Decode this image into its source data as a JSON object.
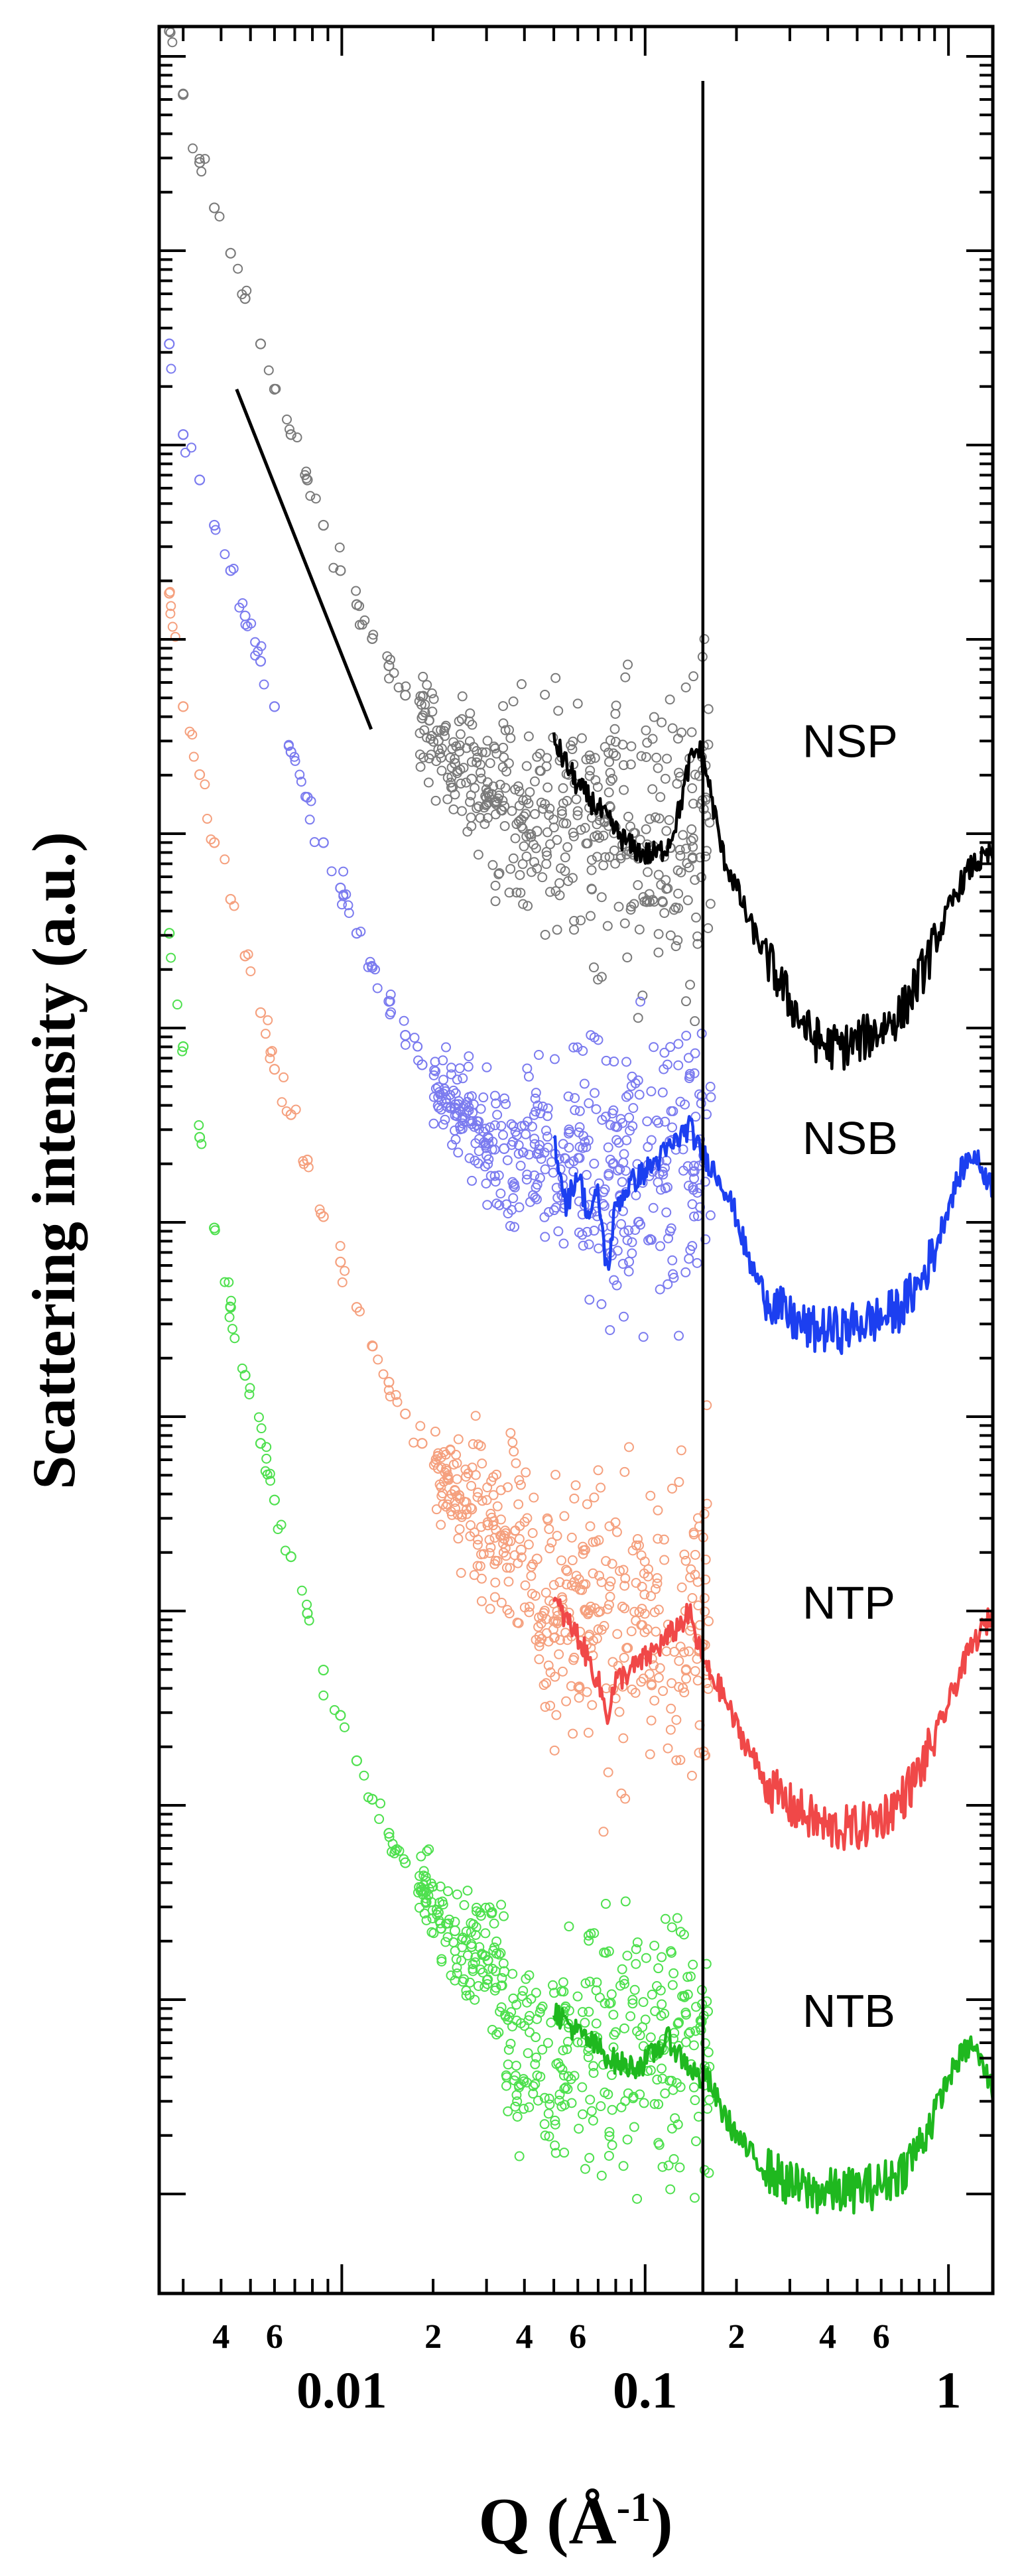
{
  "chart_data": {
    "type": "scatter",
    "title": "",
    "xlabel": "Q (Å",
    "xlabel_sup": "-1",
    "xlabel_end": ")",
    "ylabel": "Scattering intensity (a.u.)",
    "xscale": "log",
    "xlim": [
      0.0025,
      1.4
    ],
    "ylim": [
      0,
      100
    ],
    "y_ticks": "unlabeled",
    "x_tick_labels": [
      {
        "value": 0.004,
        "label": "4"
      },
      {
        "value": 0.006,
        "label": "6"
      },
      {
        "value": 0.01,
        "label": "0.01"
      },
      {
        "value": 0.02,
        "label": "2"
      },
      {
        "value": 0.04,
        "label": "4"
      },
      {
        "value": 0.06,
        "label": "6"
      },
      {
        "value": 0.1,
        "label": "0.1"
      },
      {
        "value": 0.2,
        "label": "2"
      },
      {
        "value": 0.4,
        "label": "4"
      },
      {
        "value": 0.6,
        "label": "6"
      },
      {
        "value": 1,
        "label": "1"
      }
    ],
    "reference_line": {
      "type": "vertical",
      "x": 0.155
    },
    "guide_line": {
      "x": [
        0.0045,
        0.0125
      ],
      "y": [
        84,
        69
      ]
    },
    "series": [
      {
        "name": "NSP",
        "marker_color": "#7a7a7a",
        "line_color": "#000000",
        "saxs_points": {
          "x": [
            0.0027,
            0.003,
            0.0034,
            0.0038,
            0.0043,
            0.0048,
            0.0054,
            0.006,
            0.0068,
            0.0077,
            0.0087,
            0.0099,
            0.0112,
            0.0126,
            0.0143,
            0.0162,
            0.0184,
            0.0208,
            0.0236,
            0.0268,
            0.0303,
            0.0343,
            0.039,
            0.044
          ],
          "y": [
            99.8,
            97,
            94,
            92,
            90,
            88,
            86,
            84,
            82,
            80,
            78,
            76,
            74.5,
            73,
            71.8,
            70.5,
            69.5,
            68.5,
            67.5,
            66.8,
            66.2,
            65.6,
            65,
            64.5
          ],
          "scatter_start": 0.018,
          "scatter_end": 0.165,
          "scatter_center": 65,
          "scatter_spread": 5
        },
        "waxs_line": {
          "x": [
            0.05,
            0.06,
            0.07,
            0.08,
            0.09,
            0.1,
            0.11,
            0.12,
            0.13,
            0.14,
            0.15,
            0.16,
            0.18,
            0.2,
            0.22,
            0.25,
            0.3,
            0.35,
            0.4,
            0.45,
            0.5,
            0.6,
            0.7,
            0.8,
            0.9,
            1.0,
            1.1,
            1.2,
            1.4
          ],
          "y": [
            68.5,
            66.5,
            65.5,
            64.5,
            63.8,
            63.5,
            63.5,
            64,
            65.5,
            67.5,
            68.2,
            67,
            63.5,
            62,
            60.5,
            59,
            57,
            55.5,
            55,
            55,
            55.2,
            55.8,
            56.5,
            58,
            59.5,
            61,
            62.2,
            63,
            63.5
          ],
          "noise": 0.8
        },
        "label_at": {
          "x": 0.33,
          "y": 68.5
        }
      },
      {
        "name": "NSB",
        "marker_color": "#7b7bef",
        "line_color": "#1c3ff0",
        "saxs_points": {
          "x": [
            0.0027,
            0.003,
            0.0034,
            0.0038,
            0.0043,
            0.0048,
            0.0054,
            0.006,
            0.0068,
            0.0077,
            0.0087,
            0.0099,
            0.0112,
            0.0126,
            0.0143,
            0.0162,
            0.0184,
            0.0208,
            0.0236,
            0.0268,
            0.0303,
            0.0343
          ],
          "y": [
            86,
            82,
            80,
            78,
            76,
            74,
            72,
            70,
            68,
            66,
            64,
            62,
            60,
            58.5,
            57,
            55.5,
            54.2,
            53.2,
            52.3,
            51.6,
            51,
            50.5
          ],
          "scatter_start": 0.02,
          "scatter_end": 0.165,
          "scatter_center": 50,
          "scatter_spread": 4.5
        },
        "waxs_line": {
          "x": [
            0.05,
            0.055,
            0.06,
            0.065,
            0.07,
            0.075,
            0.08,
            0.09,
            0.1,
            0.11,
            0.12,
            0.13,
            0.14,
            0.15,
            0.16,
            0.18,
            0.2,
            0.22,
            0.25,
            0.3,
            0.35,
            0.4,
            0.45,
            0.5,
            0.6,
            0.7,
            0.8,
            0.9,
            1.0,
            1.1,
            1.2,
            1.4
          ],
          "y": [
            51,
            48,
            49.5,
            47.5,
            48.5,
            45,
            48,
            49,
            49.5,
            50,
            50.5,
            51,
            51.5,
            50.5,
            50,
            49,
            47.5,
            45.5,
            44,
            43,
            42.5,
            42.5,
            42.5,
            42.8,
            43,
            43.5,
            44.5,
            46,
            48,
            49.5,
            50.3,
            48.8
          ],
          "noise": 0.8
        },
        "label_at": {
          "x": 0.33,
          "y": 51
        }
      },
      {
        "name": "NTP",
        "marker_color": "#f5a07e",
        "line_color": "#f04848",
        "saxs_points": {
          "x": [
            0.0027,
            0.003,
            0.0034,
            0.0038,
            0.0043,
            0.0048,
            0.0054,
            0.006,
            0.0068,
            0.0077,
            0.0087,
            0.0099,
            0.0112,
            0.0126,
            0.0143,
            0.0162,
            0.0184,
            0.0208,
            0.0236,
            0.0268,
            0.0303,
            0.0343,
            0.039,
            0.044
          ],
          "y": [
            75,
            70,
            67,
            64,
            61.5,
            59,
            56.5,
            54,
            52,
            50,
            47.5,
            45.5,
            43.5,
            41.8,
            40.2,
            38.8,
            37.5,
            36.4,
            35.4,
            34.6,
            33.9,
            33.3,
            32.8,
            32.4
          ],
          "scatter_start": 0.02,
          "scatter_end": 0.165,
          "scatter_center": 30,
          "scatter_spread": 5
        },
        "waxs_line": {
          "x": [
            0.05,
            0.06,
            0.07,
            0.075,
            0.08,
            0.09,
            0.1,
            0.11,
            0.12,
            0.13,
            0.14,
            0.15,
            0.16,
            0.18,
            0.2,
            0.22,
            0.25,
            0.3,
            0.35,
            0.4,
            0.45,
            0.5,
            0.6,
            0.7,
            0.8,
            0.9,
            1.0,
            1.1,
            1.2,
            1.4
          ],
          "y": [
            30.5,
            29,
            27,
            25.5,
            27,
            27.5,
            28,
            28.5,
            29,
            29.5,
            30,
            28.5,
            27.5,
            26.5,
            25,
            24,
            22.5,
            21.5,
            21,
            20.5,
            20.5,
            20.5,
            21,
            21.8,
            23,
            24.5,
            26,
            27.5,
            28.6,
            30
          ],
          "noise": 0.8
        },
        "label_at": {
          "x": 0.33,
          "y": 30.5
        }
      },
      {
        "name": "NTB",
        "marker_color": "#4ee04e",
        "line_color": "#1fb81f",
        "saxs_points": {
          "x": [
            0.0027,
            0.003,
            0.0034,
            0.0038,
            0.0043,
            0.0048,
            0.0054,
            0.006,
            0.0068,
            0.0077,
            0.0087,
            0.0099,
            0.0112,
            0.0126,
            0.0143,
            0.0162,
            0.0184,
            0.0208,
            0.0236,
            0.0268,
            0.0303,
            0.0343
          ],
          "y": [
            60,
            55,
            51,
            47,
            43.5,
            40.5,
            37.5,
            35,
            32.5,
            30,
            27.5,
            25.5,
            23.5,
            21.8,
            20.3,
            19,
            17.8,
            16.8,
            16,
            15.3,
            14.7,
            14.2
          ],
          "scatter_start": 0.018,
          "scatter_end": 0.165,
          "scatter_center": 11,
          "scatter_spread": 4.5
        },
        "waxs_line": {
          "x": [
            0.05,
            0.06,
            0.07,
            0.08,
            0.09,
            0.1,
            0.11,
            0.12,
            0.13,
            0.14,
            0.15,
            0.16,
            0.18,
            0.2,
            0.22,
            0.25,
            0.3,
            0.35,
            0.4,
            0.45,
            0.5,
            0.6,
            0.7,
            0.8,
            0.9,
            1.0,
            1.1,
            1.2,
            1.3,
            1.4
          ],
          "y": [
            12.5,
            11.5,
            10.8,
            10.2,
            10,
            10.2,
            10.8,
            11.2,
            10.5,
            10,
            9.5,
            9.5,
            8,
            7,
            6.2,
            5.5,
            4.8,
            4.5,
            4.5,
            4.5,
            4.6,
            4.8,
            5.4,
            6.5,
            8,
            9.5,
            10.5,
            11,
            10,
            9
          ],
          "noise": 0.8
        },
        "label_at": {
          "x": 0.33,
          "y": 12.5
        }
      }
    ]
  }
}
